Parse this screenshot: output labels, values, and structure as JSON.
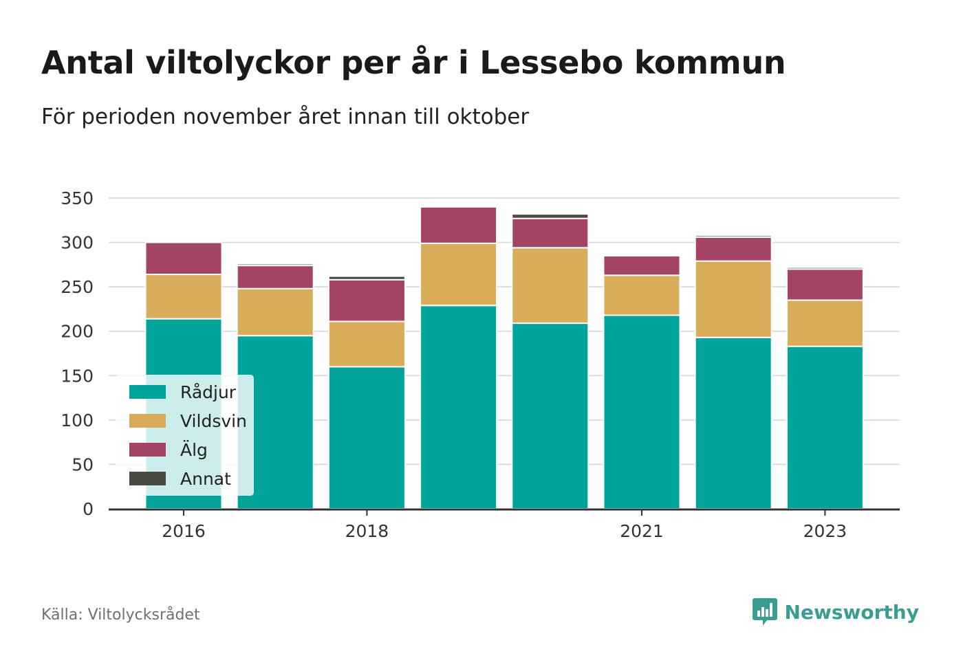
{
  "title": "Antal viltolyckor per år i Lessebo kommun",
  "subtitle": "För perioden november året innan till oktober",
  "source": "Källa: Viltolycksrådet",
  "brand": {
    "name": "Newsworthy",
    "icon": "newsworthy-logo-icon",
    "color": "#3a9d92"
  },
  "chart_data": {
    "type": "bar",
    "stacked": true,
    "x": [
      2016,
      2017,
      2018,
      2019,
      2020,
      2021,
      2022,
      2023
    ],
    "x_tick_labels": [
      "2016",
      "2018",
      "2021",
      "2023"
    ],
    "x_tick_values": [
      2016,
      2018,
      2021,
      2023
    ],
    "y_ticks": [
      0,
      50,
      100,
      150,
      200,
      250,
      300,
      350
    ],
    "ylim": [
      0,
      350
    ],
    "grid": true,
    "legend_position": "bottom-left",
    "series": [
      {
        "name": "Rådjur",
        "color": "#00a49a",
        "values": [
          214,
          195,
          160,
          229,
          209,
          218,
          193,
          183
        ]
      },
      {
        "name": "Vildsvin",
        "color": "#d9ac5a",
        "values": [
          50,
          53,
          51,
          70,
          85,
          45,
          86,
          52
        ]
      },
      {
        "name": "Älg",
        "color": "#a34366",
        "values": [
          36,
          26,
          47,
          41,
          33,
          22,
          27,
          35
        ]
      },
      {
        "name": "Annat",
        "color": "#4a4b40",
        "values": [
          0,
          2,
          4,
          0,
          5,
          0,
          2,
          2
        ]
      }
    ]
  }
}
